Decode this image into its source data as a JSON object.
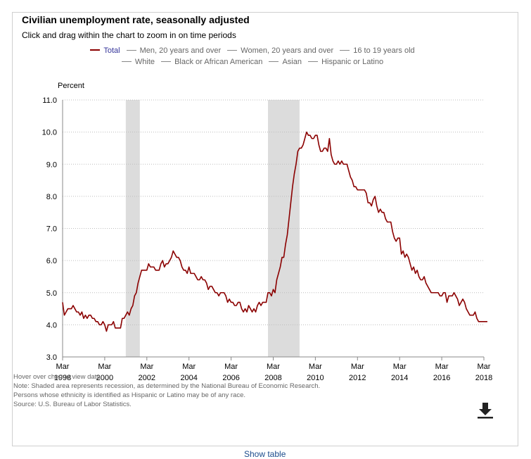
{
  "title": "Civilian unemployment rate, seasonally adjusted",
  "subtitle": "Click and drag within the chart to zoom in on time periods",
  "legend": {
    "row1": [
      "Total",
      "Men, 20 years and over",
      "Women, 20 years and over",
      "16 to 19 years old"
    ],
    "row2": [
      "White",
      "Black or African American",
      "Asian",
      "Hispanic or Latino"
    ]
  },
  "notes": [
    "Hover over chart to view data.",
    "Note: Shaded area represents recession, as determined by the National Bureau of Economic Research.",
    "Persons whose ethnicity is identified as Hispanic or Latino may be of any race.",
    "Source: U.S. Bureau of Labor Statistics."
  ],
  "show_table": "Show table",
  "icons": {
    "download": "download-icon"
  },
  "colors": {
    "total_series": "#8b0000",
    "recession_band": "#dcdcdc",
    "active_legend": "#333399"
  },
  "chart_data": {
    "type": "line",
    "ylabel": "Percent",
    "ylim": [
      3.0,
      11.0
    ],
    "yticks": [
      "3.0",
      "4.0",
      "5.0",
      "6.0",
      "7.0",
      "8.0",
      "9.0",
      "10.0",
      "11.0"
    ],
    "xlim": [
      1998.167,
      2018.167
    ],
    "xticks": [
      {
        "month": "Mar",
        "year": "1998"
      },
      {
        "month": "Mar",
        "year": "2000"
      },
      {
        "month": "Mar",
        "year": "2002"
      },
      {
        "month": "Mar",
        "year": "2004"
      },
      {
        "month": "Mar",
        "year": "2006"
      },
      {
        "month": "Mar",
        "year": "2008"
      },
      {
        "month": "Mar",
        "year": "2010"
      },
      {
        "month": "Mar",
        "year": "2012"
      },
      {
        "month": "Mar",
        "year": "2014"
      },
      {
        "month": "Mar",
        "year": "2016"
      },
      {
        "month": "Mar",
        "year": "2018"
      }
    ],
    "grid": true,
    "legend_placement": "top",
    "recessions": [
      {
        "start": "2001-03",
        "end": "2001-11"
      },
      {
        "start": "2007-12",
        "end": "2009-06"
      }
    ],
    "series": [
      {
        "name": "Total",
        "start": "1998-03",
        "frequency": "monthly",
        "values": [
          4.7,
          4.3,
          4.4,
          4.5,
          4.5,
          4.5,
          4.6,
          4.5,
          4.4,
          4.4,
          4.3,
          4.4,
          4.2,
          4.3,
          4.2,
          4.3,
          4.3,
          4.2,
          4.2,
          4.1,
          4.1,
          4.0,
          4.0,
          4.1,
          4.0,
          3.8,
          4.0,
          4.0,
          4.0,
          4.1,
          3.9,
          3.9,
          3.9,
          3.9,
          4.2,
          4.2,
          4.3,
          4.4,
          4.3,
          4.5,
          4.6,
          4.9,
          5.0,
          5.3,
          5.5,
          5.7,
          5.7,
          5.7,
          5.7,
          5.9,
          5.8,
          5.8,
          5.8,
          5.7,
          5.7,
          5.7,
          5.9,
          6.0,
          5.8,
          5.9,
          5.9,
          6.0,
          6.1,
          6.3,
          6.2,
          6.1,
          6.1,
          6.0,
          5.8,
          5.7,
          5.7,
          5.6,
          5.8,
          5.6,
          5.6,
          5.6,
          5.5,
          5.4,
          5.4,
          5.5,
          5.4,
          5.4,
          5.3,
          5.1,
          5.2,
          5.2,
          5.1,
          5.0,
          5.0,
          4.9,
          5.0,
          5.0,
          5.0,
          4.9,
          4.7,
          4.8,
          4.7,
          4.7,
          4.6,
          4.6,
          4.7,
          4.7,
          4.5,
          4.4,
          4.5,
          4.4,
          4.6,
          4.5,
          4.4,
          4.5,
          4.4,
          4.6,
          4.7,
          4.6,
          4.7,
          4.7,
          4.7,
          5.0,
          5.0,
          4.9,
          5.1,
          5.0,
          5.4,
          5.6,
          5.8,
          6.1,
          6.1,
          6.5,
          6.8,
          7.3,
          7.8,
          8.3,
          8.7,
          9.0,
          9.4,
          9.5,
          9.5,
          9.6,
          9.8,
          10.0,
          9.9,
          9.9,
          9.8,
          9.8,
          9.9,
          9.9,
          9.6,
          9.4,
          9.4,
          9.5,
          9.5,
          9.4,
          9.8,
          9.3,
          9.1,
          9.0,
          9.0,
          9.1,
          9.0,
          9.1,
          9.0,
          9.0,
          9.0,
          8.8,
          8.6,
          8.5,
          8.3,
          8.3,
          8.2,
          8.2,
          8.2,
          8.2,
          8.2,
          8.1,
          7.8,
          7.8,
          7.7,
          7.9,
          8.0,
          7.7,
          7.5,
          7.6,
          7.5,
          7.5,
          7.3,
          7.2,
          7.2,
          7.2,
          6.9,
          6.7,
          6.6,
          6.7,
          6.7,
          6.2,
          6.3,
          6.1,
          6.2,
          6.1,
          5.9,
          5.7,
          5.8,
          5.6,
          5.7,
          5.5,
          5.4,
          5.4,
          5.5,
          5.3,
          5.2,
          5.1,
          5.0,
          5.0,
          5.0,
          5.0,
          5.0,
          4.9,
          4.9,
          5.0,
          5.0,
          4.7,
          4.9,
          4.9,
          4.9,
          5.0,
          4.9,
          4.8,
          4.6,
          4.7,
          4.8,
          4.7,
          4.5,
          4.4,
          4.3,
          4.3,
          4.3,
          4.4,
          4.2,
          4.1,
          4.1,
          4.1,
          4.1,
          4.1,
          4.1
        ]
      }
    ]
  }
}
